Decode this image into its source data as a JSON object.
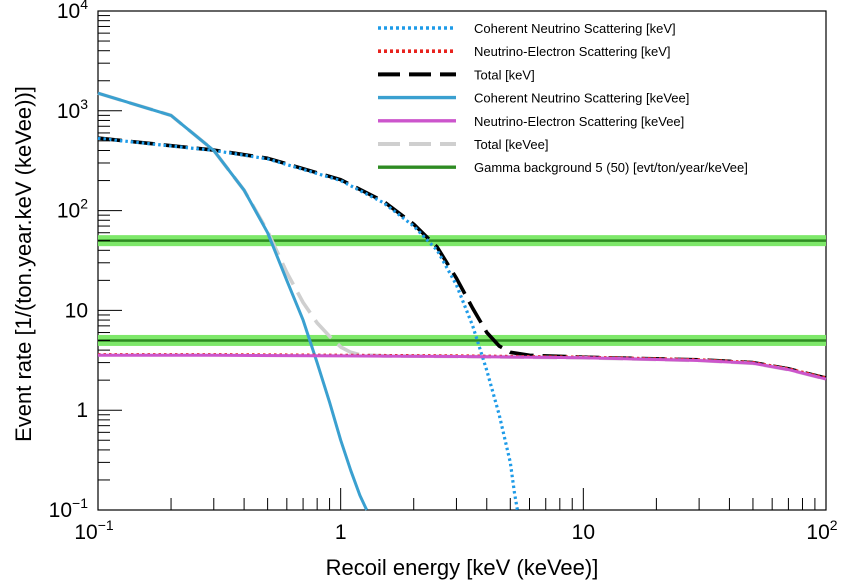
{
  "chart_data": {
    "type": "line",
    "xlabel": "Recoil energy [keV (keVee)]",
    "ylabel": "Event rate [1/(ton.year.keV (keVee))]",
    "xscale": "log",
    "yscale": "log",
    "xlim": [
      0.1,
      100
    ],
    "ylim": [
      0.1,
      10000
    ],
    "grid": false,
    "legend_placement": "top-right",
    "x_tick_labels": [
      {
        "value": 0.1,
        "base": "10",
        "exp": "−1"
      },
      {
        "value": 1,
        "base": "1",
        "exp": ""
      },
      {
        "value": 10,
        "base": "10",
        "exp": ""
      },
      {
        "value": 100,
        "base": "10",
        "exp": "2"
      }
    ],
    "y_tick_labels": [
      {
        "value": 0.1,
        "base": "10",
        "exp": "−1"
      },
      {
        "value": 1,
        "base": "1",
        "exp": ""
      },
      {
        "value": 10,
        "base": "10",
        "exp": ""
      },
      {
        "value": 100,
        "base": "10",
        "exp": "2"
      },
      {
        "value": 1000,
        "base": "10",
        "exp": "3"
      },
      {
        "value": 10000,
        "base": "10",
        "exp": "4"
      }
    ],
    "series": [
      {
        "name": "Coherent Neutrino Scattering [keV]",
        "color": "#1e9be8",
        "style": "dotted",
        "x": [
          0.1,
          0.3,
          0.5,
          1,
          1.5,
          2,
          2.5,
          3,
          3.5,
          4,
          4.5,
          5,
          5.2,
          5.35
        ],
        "y": [
          530,
          400,
          330,
          200,
          120,
          70,
          40,
          18,
          7,
          2.5,
          0.9,
          0.3,
          0.15,
          0.1
        ]
      },
      {
        "name": "Neutrino-Electron Scattering [keV]",
        "color": "#e8231e",
        "style": "dotted",
        "x": [
          0.1,
          0.3,
          1,
          3,
          10,
          30,
          50,
          70,
          100
        ],
        "y": [
          3.6,
          3.6,
          3.55,
          3.5,
          3.4,
          3.2,
          3.0,
          2.6,
          2.1
        ]
      },
      {
        "name": "Total [keV]",
        "color": "#000000",
        "style": "long-dash",
        "x": [
          0.1,
          0.3,
          0.5,
          1,
          1.5,
          2,
          2.5,
          3,
          3.5,
          4,
          4.5,
          5,
          6,
          10,
          30,
          50,
          70,
          100
        ],
        "y": [
          533,
          404,
          334,
          204,
          124,
          73,
          43,
          21,
          10.5,
          6,
          4.4,
          3.8,
          3.55,
          3.4,
          3.2,
          3.0,
          2.6,
          2.1
        ]
      },
      {
        "name": "Coherent Neutrino Scattering [keVee]",
        "color": "#3aa0d0",
        "style": "solid",
        "x": [
          0.1,
          0.2,
          0.3,
          0.4,
          0.5,
          0.6,
          0.7,
          0.8,
          0.9,
          1.0,
          1.1,
          1.2,
          1.28
        ],
        "y": [
          1500,
          900,
          400,
          160,
          60,
          20,
          8,
          3,
          1.2,
          0.5,
          0.25,
          0.14,
          0.1
        ]
      },
      {
        "name": "Neutrino-Electron Scattering [keVee]",
        "color": "#cc55cc",
        "style": "solid",
        "x": [
          0.1,
          0.3,
          1,
          3,
          10,
          30,
          50,
          70,
          100
        ],
        "y": [
          3.55,
          3.55,
          3.5,
          3.45,
          3.35,
          3.15,
          2.95,
          2.55,
          2.05
        ]
      },
      {
        "name": "Total [keVee]",
        "color": "#cfcfcf",
        "style": "long-dash",
        "x": [
          0.1,
          0.2,
          0.3,
          0.4,
          0.5,
          0.6,
          0.7,
          0.8,
          0.9,
          1.0,
          1.1,
          1.2,
          1.5,
          3,
          10,
          30,
          50,
          70,
          100
        ],
        "y": [
          1500,
          900,
          400,
          160,
          62,
          24,
          12,
          7.5,
          5.5,
          4.3,
          3.8,
          3.6,
          3.5,
          3.45,
          3.35,
          3.15,
          2.95,
          2.55,
          2.05
        ]
      },
      {
        "name": "Gamma background 5 (50) [evt/ton/year/keVee]",
        "color": "#2e8b22",
        "band_color": "#7ee86a",
        "style": "solid",
        "levels": [
          5,
          50
        ]
      }
    ]
  }
}
